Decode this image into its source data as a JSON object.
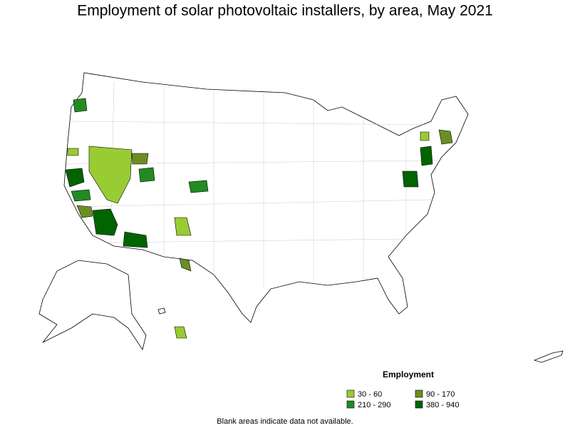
{
  "title": "Employment of solar photovoltaic installers, by area, May 2021",
  "legend": {
    "title": "Employment",
    "items": [
      {
        "label": "30 - 60",
        "color": "#99cc33"
      },
      {
        "label": "90 - 170",
        "color": "#6b8e23"
      },
      {
        "label": "210 - 290",
        "color": "#228b22"
      },
      {
        "label": "380 - 940",
        "color": "#006400"
      }
    ]
  },
  "footnote": "Blank areas indicate data not available."
}
